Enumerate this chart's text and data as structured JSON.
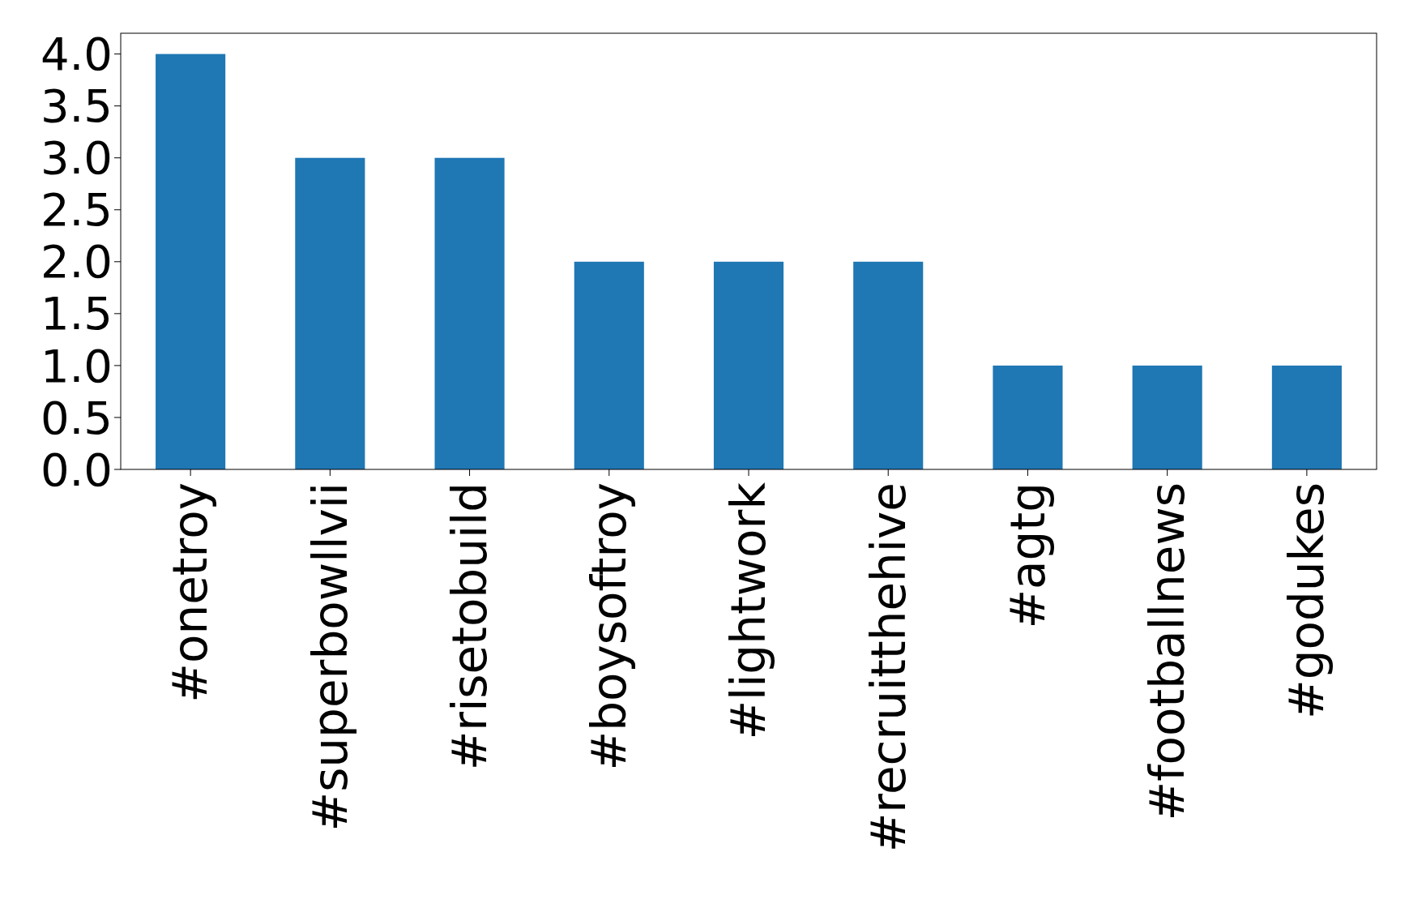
{
  "chart_data": {
    "type": "bar",
    "categories": [
      "#onetroy",
      "#superbowllvii",
      "#risetobuild",
      "#boysoftroy",
      "#lightwork",
      "#recruitthehive",
      "#agtg",
      "#footballnews",
      "#godukes"
    ],
    "values": [
      4,
      3,
      3,
      2,
      2,
      2,
      1,
      1,
      1
    ],
    "color": "#1f77b4",
    "ylim": [
      0,
      4.2
    ],
    "yticks": [
      {
        "value": 0,
        "label": "0.0"
      },
      {
        "value": 0.5,
        "label": "0.5"
      },
      {
        "value": 1,
        "label": "1.0"
      },
      {
        "value": 1.5,
        "label": "1.5"
      },
      {
        "value": 2,
        "label": "2.0"
      },
      {
        "value": 2.5,
        "label": "2.5"
      },
      {
        "value": 3,
        "label": "3.0"
      },
      {
        "value": 3.5,
        "label": "3.5"
      },
      {
        "value": 4,
        "label": "4.0"
      }
    ],
    "grid": false
  }
}
